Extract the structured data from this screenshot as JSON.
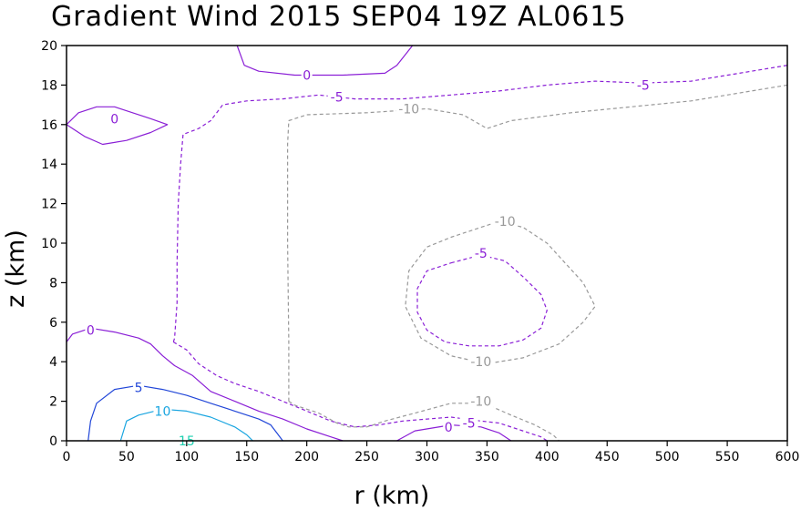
{
  "chart_data": {
    "type": "contour",
    "title": "Gradient Wind 2015 SEP04 19Z  AL0615",
    "xlabel": "r (km)",
    "ylabel": "z (km)",
    "xlim": [
      0,
      600
    ],
    "ylim": [
      0,
      20
    ],
    "xticks": [
      "0",
      "50",
      "100",
      "150",
      "200",
      "250",
      "300",
      "350",
      "400",
      "450",
      "500",
      "550",
      "600"
    ],
    "yticks": [
      "0",
      "2",
      "4",
      "6",
      "8",
      "10",
      "12",
      "14",
      "16",
      "18",
      "20"
    ],
    "grid": false,
    "contours": [
      {
        "level": "0",
        "color": "#8a1fd6",
        "dashed": false,
        "label_at": [
          20,
          5.6
        ],
        "points": [
          [
            0,
            5.0
          ],
          [
            5,
            5.4
          ],
          [
            20,
            5.7
          ],
          [
            40,
            5.5
          ],
          [
            60,
            5.2
          ],
          [
            70,
            4.9
          ],
          [
            80,
            4.3
          ],
          [
            90,
            3.8
          ],
          [
            105,
            3.3
          ],
          [
            120,
            2.5
          ],
          [
            140,
            2.0
          ],
          [
            160,
            1.5
          ],
          [
            180,
            1.1
          ],
          [
            200,
            0.6
          ],
          [
            220,
            0.2
          ],
          [
            230,
            0.0
          ]
        ]
      },
      {
        "level": "0",
        "color": "#8a1fd6",
        "dashed": false,
        "label_at": [
          318,
          0.7
        ],
        "points": [
          [
            275,
            0.0
          ],
          [
            290,
            0.5
          ],
          [
            320,
            0.8
          ],
          [
            345,
            0.7
          ],
          [
            360,
            0.4
          ],
          [
            370,
            0.0
          ]
        ]
      },
      {
        "level": "0",
        "color": "#8a1fd6",
        "dashed": false,
        "label_at": [
          200,
          18.5
        ],
        "points": [
          [
            142,
            20.0
          ],
          [
            148,
            19.0
          ],
          [
            160,
            18.7
          ],
          [
            190,
            18.5
          ],
          [
            230,
            18.5
          ],
          [
            265,
            18.6
          ],
          [
            275,
            19.0
          ],
          [
            288,
            20.0
          ]
        ]
      },
      {
        "level": "0",
        "color": "#8a1fd6",
        "dashed": false,
        "label_at": [
          40,
          16.2
        ],
        "points": [
          [
            0,
            16.0
          ],
          [
            10,
            16.6
          ],
          [
            25,
            16.9
          ],
          [
            40,
            16.9
          ],
          [
            55,
            16.6
          ],
          [
            70,
            16.3
          ],
          [
            84,
            16.0
          ],
          [
            70,
            15.6
          ],
          [
            50,
            15.2
          ],
          [
            30,
            15.0
          ],
          [
            15,
            15.4
          ],
          [
            5,
            15.8
          ],
          [
            0,
            16.0
          ]
        ]
      },
      {
        "level": "5",
        "color": "#2247d8",
        "dashed": false,
        "label_at": [
          60,
          2.7
        ],
        "points": [
          [
            18,
            0.0
          ],
          [
            20,
            1.0
          ],
          [
            25,
            1.9
          ],
          [
            40,
            2.6
          ],
          [
            60,
            2.8
          ],
          [
            80,
            2.6
          ],
          [
            100,
            2.3
          ],
          [
            120,
            1.9
          ],
          [
            140,
            1.5
          ],
          [
            160,
            1.1
          ],
          [
            170,
            0.8
          ],
          [
            175,
            0.4
          ],
          [
            180,
            0.0
          ]
        ]
      },
      {
        "level": "10",
        "color": "#19a5e0",
        "dashed": false,
        "label_at": [
          80,
          1.5
        ],
        "points": [
          [
            45,
            0.0
          ],
          [
            50,
            1.0
          ],
          [
            60,
            1.3
          ],
          [
            80,
            1.6
          ],
          [
            100,
            1.5
          ],
          [
            120,
            1.2
          ],
          [
            140,
            0.7
          ],
          [
            150,
            0.3
          ],
          [
            155,
            0.0
          ]
        ]
      },
      {
        "level": "15",
        "color": "#1fcfb0",
        "dashed": false,
        "label_at": [
          100,
          0.0
        ],
        "points": []
      },
      {
        "level": "-5",
        "color": "#8a1fd6",
        "dashed": true,
        "label_at": [
          225,
          17.4
        ],
        "points": [
          [
            89,
            5.0
          ],
          [
            90,
            5.2
          ],
          [
            92,
            7.0
          ],
          [
            92,
            9.0
          ],
          [
            93,
            12.0
          ],
          [
            95,
            14.0
          ],
          [
            97,
            15.5
          ],
          [
            110,
            15.8
          ],
          [
            120,
            16.2
          ],
          [
            130,
            17.0
          ],
          [
            150,
            17.2
          ],
          [
            180,
            17.3
          ],
          [
            210,
            17.5
          ],
          [
            240,
            17.3
          ],
          [
            280,
            17.3
          ],
          [
            320,
            17.5
          ],
          [
            360,
            17.7
          ],
          [
            400,
            18.0
          ],
          [
            440,
            18.2
          ],
          [
            480,
            18.1
          ],
          [
            520,
            18.2
          ],
          [
            560,
            18.6
          ],
          [
            600,
            19.0
          ]
        ]
      },
      {
        "level": "-5",
        "color": "#8a1fd6",
        "dashed": true,
        "label_at": [
          0,
          0
        ],
        "points": [
          [
            89,
            5.0
          ],
          [
            100,
            4.6
          ],
          [
            110,
            3.9
          ],
          [
            125,
            3.3
          ],
          [
            140,
            2.9
          ],
          [
            160,
            2.5
          ],
          [
            180,
            2.0
          ],
          [
            200,
            1.5
          ],
          [
            220,
            1.0
          ],
          [
            240,
            0.7
          ],
          [
            260,
            0.8
          ],
          [
            280,
            1.0
          ],
          [
            320,
            1.2
          ],
          [
            345,
            1.0
          ],
          [
            360,
            0.9
          ],
          [
            375,
            0.6
          ],
          [
            395,
            0.2
          ],
          [
            400,
            0.0
          ]
        ]
      },
      {
        "level": "-5",
        "color": "#8a1fd6",
        "dashed": true,
        "label_at": [
          345,
          9.5
        ],
        "points": [
          [
            320,
            9.0
          ],
          [
            345,
            9.4
          ],
          [
            365,
            9.1
          ],
          [
            380,
            8.3
          ],
          [
            395,
            7.4
          ],
          [
            400,
            6.6
          ],
          [
            395,
            5.7
          ],
          [
            380,
            5.1
          ],
          [
            360,
            4.8
          ],
          [
            335,
            4.8
          ],
          [
            315,
            5.0
          ],
          [
            300,
            5.6
          ],
          [
            292,
            6.5
          ],
          [
            292,
            7.7
          ],
          [
            300,
            8.6
          ],
          [
            320,
            9.0
          ]
        ]
      },
      {
        "level": "-10",
        "color": "#999999",
        "dashed": true,
        "label_at": [
          285,
          16.8
        ],
        "points": [
          [
            185,
            2.0
          ],
          [
            185,
            5.0
          ],
          [
            184,
            10.0
          ],
          [
            184,
            15.0
          ],
          [
            185,
            16.2
          ],
          [
            200,
            16.5
          ],
          [
            250,
            16.6
          ],
          [
            300,
            16.8
          ],
          [
            330,
            16.5
          ],
          [
            350,
            15.8
          ],
          [
            370,
            16.2
          ],
          [
            420,
            16.6
          ],
          [
            470,
            16.9
          ],
          [
            520,
            17.2
          ],
          [
            560,
            17.6
          ],
          [
            600,
            18.0
          ]
        ]
      },
      {
        "level": "-10",
        "color": "#999999",
        "dashed": true,
        "label_at": [
          0,
          0
        ],
        "points": [
          [
            185,
            2.0
          ],
          [
            190,
            1.8
          ],
          [
            210,
            1.4
          ],
          [
            225,
            0.9
          ],
          [
            235,
            0.7
          ],
          [
            250,
            0.7
          ],
          [
            265,
            1.0
          ],
          [
            290,
            1.4
          ],
          [
            320,
            1.9
          ],
          [
            340,
            1.9
          ],
          [
            355,
            1.7
          ],
          [
            370,
            1.3
          ],
          [
            390,
            0.8
          ],
          [
            405,
            0.3
          ],
          [
            410,
            0.0
          ]
        ]
      },
      {
        "level": "-10",
        "color": "#999999",
        "dashed": true,
        "label_at": [
          365,
          11.1
        ],
        "points": [
          [
            340,
            10.7
          ],
          [
            360,
            11.1
          ],
          [
            380,
            10.8
          ],
          [
            400,
            10.0
          ],
          [
            415,
            9.0
          ],
          [
            430,
            8.0
          ],
          [
            440,
            6.8
          ],
          [
            430,
            6.0
          ],
          [
            410,
            4.9
          ],
          [
            380,
            4.2
          ],
          [
            350,
            3.9
          ],
          [
            320,
            4.3
          ],
          [
            295,
            5.2
          ],
          [
            282,
            6.8
          ],
          [
            285,
            8.6
          ],
          [
            300,
            9.8
          ],
          [
            320,
            10.3
          ],
          [
            340,
            10.7
          ]
        ]
      }
    ],
    "labels": [
      {
        "text": "0",
        "x": 20,
        "y": 5.6,
        "color": "#8a1fd6"
      },
      {
        "text": "0",
        "x": 40,
        "y": 16.3,
        "color": "#8a1fd6"
      },
      {
        "text": "0",
        "x": 200,
        "y": 18.5,
        "color": "#8a1fd6"
      },
      {
        "text": "0",
        "x": 318,
        "y": 0.7,
        "color": "#8a1fd6"
      },
      {
        "text": "5",
        "x": 60,
        "y": 2.7,
        "color": "#2247d8"
      },
      {
        "text": "10",
        "x": 80,
        "y": 1.5,
        "color": "#19a5e0"
      },
      {
        "text": "15",
        "x": 100,
        "y": 0.0,
        "color": "#1fcfb0"
      },
      {
        "text": "-5",
        "x": 225,
        "y": 17.4,
        "color": "#8a1fd6"
      },
      {
        "text": "-5",
        "x": 480,
        "y": 18.0,
        "color": "#8a1fd6"
      },
      {
        "text": "-5",
        "x": 345,
        "y": 9.5,
        "color": "#8a1fd6"
      },
      {
        "text": "-5",
        "x": 335,
        "y": 0.9,
        "color": "#8a1fd6"
      },
      {
        "text": "-10",
        "x": 285,
        "y": 16.8,
        "color": "#999999"
      },
      {
        "text": "-10",
        "x": 365,
        "y": 11.1,
        "color": "#999999"
      },
      {
        "text": "-10",
        "x": 345,
        "y": 4.0,
        "color": "#999999"
      },
      {
        "text": "-10",
        "x": 345,
        "y": 2.0,
        "color": "#999999"
      }
    ]
  }
}
